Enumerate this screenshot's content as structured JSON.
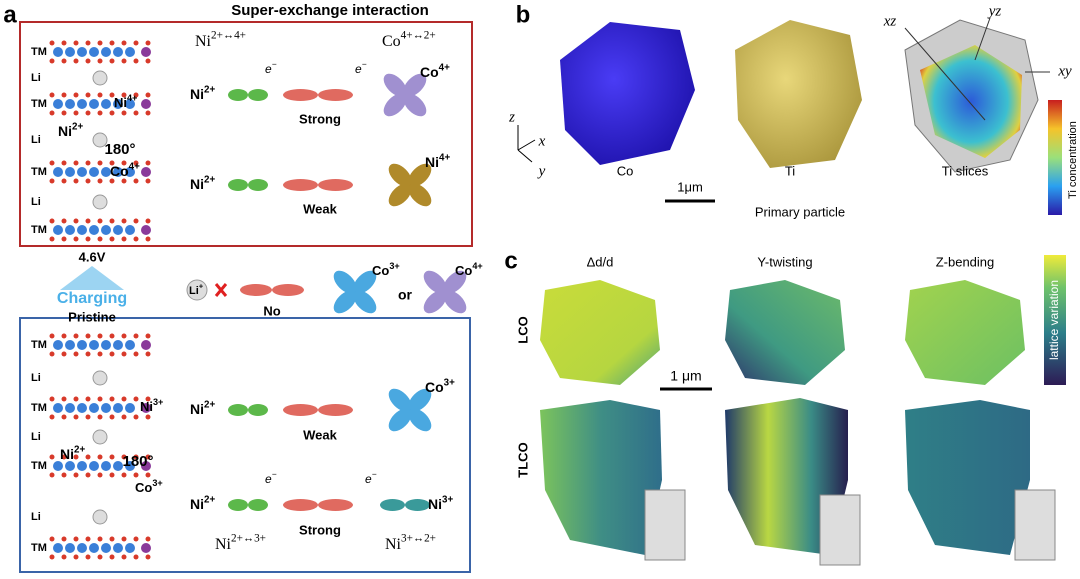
{
  "panel_a": {
    "label": "a",
    "title": "Super-exchange interaction",
    "charged_stack": {
      "layers": [
        "TM",
        "Li",
        "TM",
        "Li",
        "TM",
        "Li",
        "TM"
      ],
      "ions": [
        {
          "element": "Ni",
          "charge": "4+"
        },
        {
          "element": "Ni",
          "charge": "2+"
        },
        {
          "element": "Co",
          "charge": "4+"
        }
      ],
      "angle": "180°"
    },
    "charged_pathways": [
      {
        "left_transition": {
          "element": "Ni",
          "charge": "2+↔4+"
        },
        "right_transition": {
          "element": "Co",
          "charge": "4+↔2+"
        },
        "electron": {
          "element": "e",
          "charge": "−"
        },
        "left": {
          "element": "Ni",
          "charge": "2+"
        },
        "strength": "Strong",
        "right": {
          "element": "Co",
          "charge": "4+"
        }
      },
      {
        "left": {
          "element": "Ni",
          "charge": "2+"
        },
        "strength": "Weak",
        "right": {
          "element": "Ni",
          "charge": "4+"
        }
      }
    ],
    "voltage": "4.6V",
    "process": "Charging",
    "state": "Pristine",
    "li_pathway": {
      "ion": {
        "element": "Li",
        "charge": "+"
      },
      "strength": "No",
      "option_a": {
        "element": "Co",
        "charge": "3+"
      },
      "connector": "or",
      "option_b": {
        "element": "Co",
        "charge": "4+"
      }
    },
    "pristine_stack": {
      "layers": [
        "TM",
        "Li",
        "TM",
        "Li",
        "TM",
        "Li",
        "TM"
      ],
      "ions": [
        {
          "element": "Ni",
          "charge": "3+"
        },
        {
          "element": "Ni",
          "charge": "2+"
        },
        {
          "element": "Co",
          "charge": "3+"
        }
      ],
      "angle": "180°"
    },
    "pristine_pathways": [
      {
        "left": {
          "element": "Ni",
          "charge": "2+"
        },
        "strength": "Weak",
        "right": {
          "element": "Co",
          "charge": "3+"
        }
      },
      {
        "left_transition": {
          "element": "Ni",
          "charge": "2+↔3+"
        },
        "right_transition": {
          "element": "Ni",
          "charge": "3+↔2+"
        },
        "electron": {
          "element": "e",
          "charge": "−"
        },
        "left": {
          "element": "Ni",
          "charge": "2+"
        },
        "strength": "Strong",
        "right": {
          "element": "Ni",
          "charge": "3+"
        }
      }
    ]
  },
  "panel_b": {
    "label": "b",
    "axes": [
      "z",
      "x",
      "y"
    ],
    "particles": [
      "Co",
      "Ti",
      "Ti slices"
    ],
    "scale_bar": "1μm",
    "caption": "Primary particle",
    "slices": [
      "xz",
      "yz",
      "xy"
    ],
    "colorbar": "Ti concentration"
  },
  "panel_c": {
    "label": "c",
    "columns": [
      "Δd/d",
      "Y-twisting",
      "Z-bending"
    ],
    "rows": [
      "LCO",
      "TLCO"
    ],
    "scale_bar": "1 μm",
    "colorbar": "lattice variation"
  }
}
